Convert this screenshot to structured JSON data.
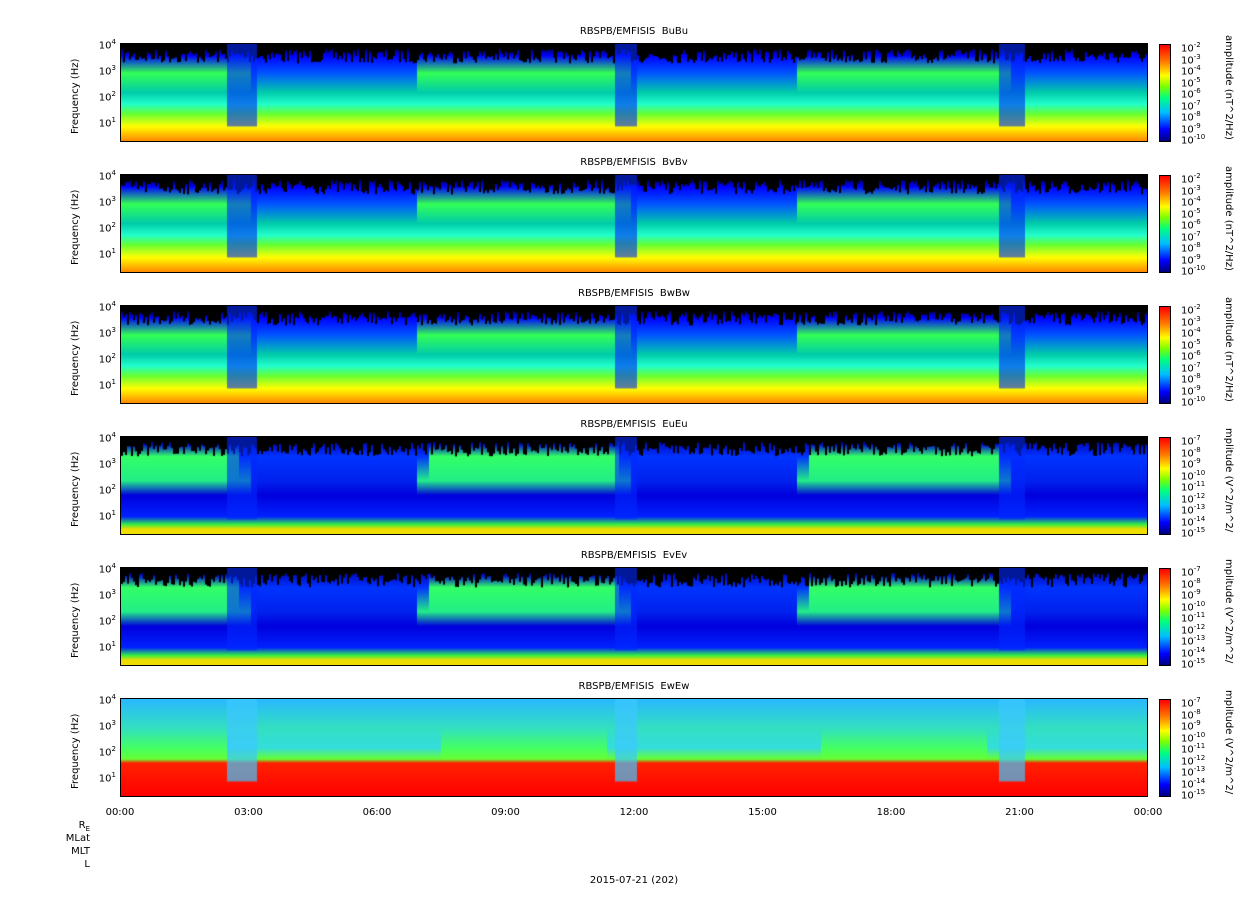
{
  "chart_data": [
    {
      "type": "heatmap",
      "title": "RBSPB/EMFISIS  BuBu",
      "ylabel": "Frequency (Hz)",
      "yscale": "log",
      "ylim": [
        2,
        10000
      ],
      "colorbar_label": "amplitude (nT^2/Hz)",
      "colorbar_ticks": [
        "-2",
        "-3",
        "-4",
        "-5",
        "-6",
        "-7",
        "-8",
        "-9",
        "-10"
      ]
    },
    {
      "type": "heatmap",
      "title": "RBSPB/EMFISIS  BvBv",
      "ylabel": "Frequency (Hz)",
      "yscale": "log",
      "ylim": [
        2,
        10000
      ],
      "colorbar_label": "amplitude (nT^2/Hz)",
      "colorbar_ticks": [
        "-2",
        "-3",
        "-4",
        "-5",
        "-6",
        "-7",
        "-8",
        "-9",
        "-10"
      ]
    },
    {
      "type": "heatmap",
      "title": "RBSPB/EMFISIS  BwBw",
      "ylabel": "Frequency (Hz)",
      "yscale": "log",
      "ylim": [
        2,
        10000
      ],
      "colorbar_label": "amplitude (nT^2/Hz)",
      "colorbar_ticks": [
        "-2",
        "-3",
        "-4",
        "-5",
        "-6",
        "-7",
        "-8",
        "-9",
        "-10"
      ]
    },
    {
      "type": "heatmap",
      "title": "RBSPB/EMFISIS  EuEu",
      "ylabel": "Frequency (Hz)",
      "yscale": "log",
      "ylim": [
        2,
        10000
      ],
      "colorbar_label": "mplitude (V^2/m^2/",
      "colorbar_ticks": [
        "-7",
        "-8",
        "-9",
        "-10",
        "-11",
        "-12",
        "-13",
        "-14",
        "-15"
      ]
    },
    {
      "type": "heatmap",
      "title": "RBSPB/EMFISIS  EvEv",
      "ylabel": "Frequency (Hz)",
      "yscale": "log",
      "ylim": [
        2,
        10000
      ],
      "colorbar_label": "mplitude (V^2/m^2/",
      "colorbar_ticks": [
        "-7",
        "-8",
        "-9",
        "-10",
        "-11",
        "-12",
        "-13",
        "-14",
        "-15"
      ]
    },
    {
      "type": "heatmap",
      "title": "RBSPB/EMFISIS  EwEw",
      "ylabel": "Frequency (Hz)",
      "yscale": "log",
      "ylim": [
        2,
        10000
      ],
      "colorbar_label": "mplitude (V^2/m^2/",
      "colorbar_ticks": [
        "-7",
        "-8",
        "-9",
        "-10",
        "-11",
        "-12",
        "-13",
        "-14",
        "-15"
      ]
    }
  ],
  "yticks": [
    "4",
    "3",
    "2",
    "1"
  ],
  "ytick_base": "10",
  "xticks": [
    "00:00",
    "03:00",
    "06:00",
    "09:00",
    "12:00",
    "15:00",
    "18:00",
    "21:00",
    "00:00"
  ],
  "ephemeris_labels": [
    "R",
    "MLat",
    "MLT",
    "L"
  ],
  "ephemeris_subscript": "E",
  "date_label": "2015-07-21 (202)"
}
